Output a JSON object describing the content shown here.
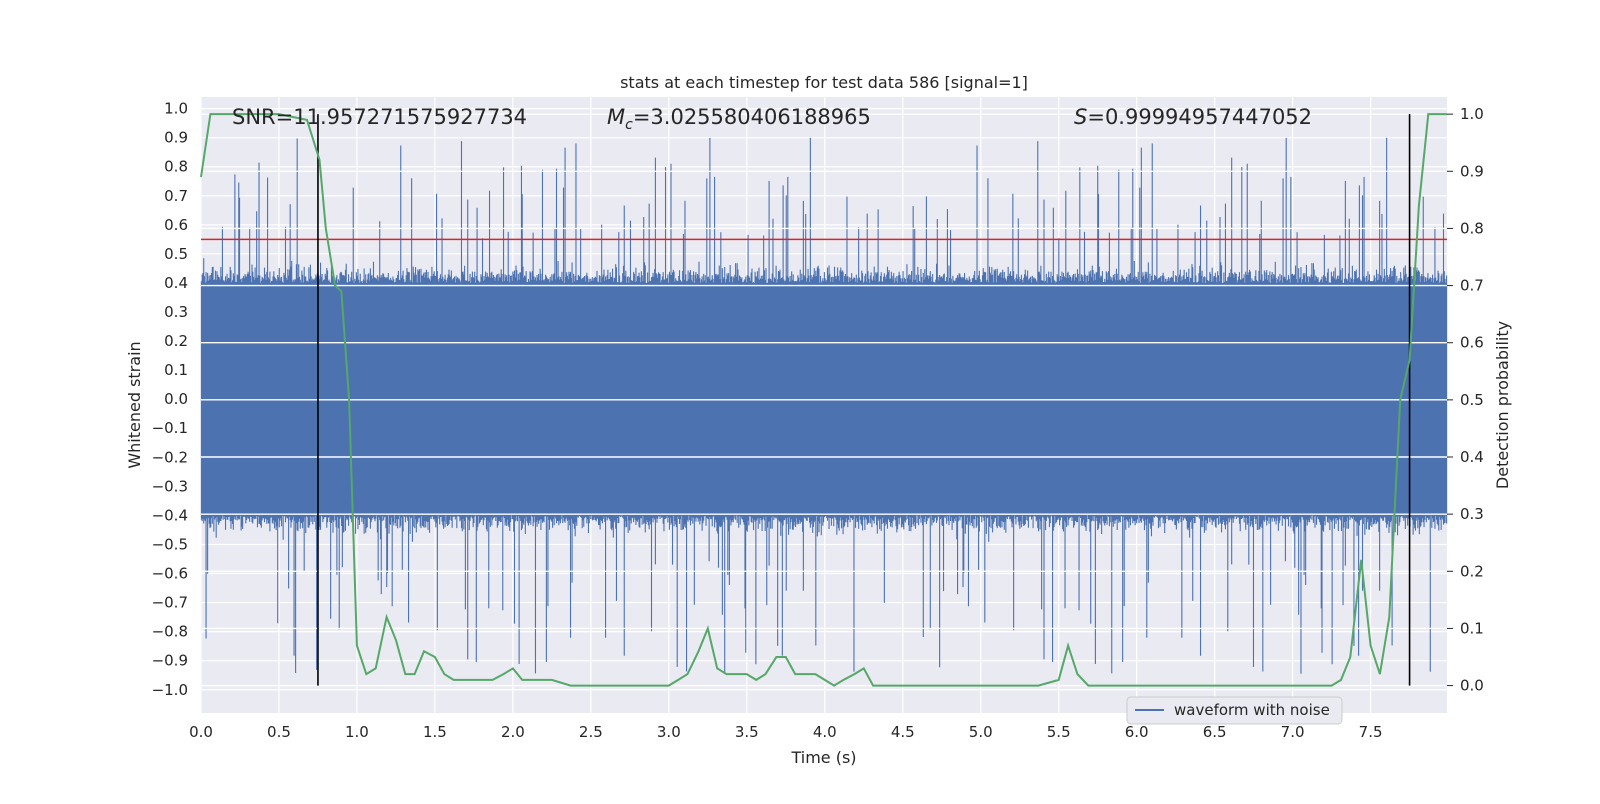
{
  "chart_data": {
    "type": "line",
    "title": "stats at each timestep for test data 586 [signal=1]",
    "xlabel": "Time (s)",
    "ylabel_left": "Whitened strain",
    "ylabel_right": "Detection probability",
    "xlim": [
      0.0,
      7.99
    ],
    "ylim_left": [
      -1.08,
      1.04
    ],
    "ylim_right": [
      -0.048,
      1.03
    ],
    "x_ticks": [
      0.0,
      0.5,
      1.0,
      1.5,
      2.0,
      2.5,
      3.0,
      3.5,
      4.0,
      4.5,
      5.0,
      5.5,
      6.0,
      6.5,
      7.0,
      7.5
    ],
    "y_ticks_left": [
      1.0,
      0.9,
      0.8,
      0.7,
      0.6,
      0.5,
      0.4,
      0.3,
      0.2,
      0.1,
      0.0,
      -0.1,
      -0.2,
      -0.3,
      -0.4,
      -0.5,
      -0.6,
      -0.7,
      -0.8,
      -0.9,
      -1.0
    ],
    "y_ticks_right": [
      1.0,
      0.9,
      0.8,
      0.7,
      0.6,
      0.5,
      0.4,
      0.3,
      0.2,
      0.1,
      0.0
    ],
    "grid": true,
    "legend": {
      "position": "lower-right",
      "entries": [
        "waveform with noise"
      ]
    },
    "annotations": [
      {
        "text": "SNR=11.957271575927734"
      },
      {
        "text_main": "M",
        "text_sub": "c",
        "text_rest": "=3.025580406188965"
      },
      {
        "text_main": "S",
        "text_rest": "=0.99994957447052"
      }
    ],
    "threshold_line": {
      "y": 0.55,
      "color": "#d62728"
    },
    "vertical_markers": [
      0.75,
      7.75
    ],
    "series": [
      {
        "name": "waveform with noise",
        "axis": "left",
        "color": "#4c72b0",
        "style": "dense_noise",
        "envelope_typical": 0.4,
        "envelope_peak": 0.9
      },
      {
        "axis": "right",
        "color": "#55a868",
        "x": [
          0.0,
          0.06,
          0.12,
          0.25,
          0.5,
          0.68,
          0.76,
          0.8,
          0.86,
          0.9,
          0.95,
          1.0,
          1.06,
          1.12,
          1.19,
          1.25,
          1.31,
          1.37,
          1.43,
          1.5,
          1.56,
          1.62,
          1.69,
          1.75,
          1.81,
          1.87,
          1.94,
          2.0,
          2.06,
          2.12,
          2.25,
          2.37,
          2.5,
          2.62,
          2.75,
          2.87,
          3.0,
          3.06,
          3.12,
          3.19,
          3.25,
          3.31,
          3.37,
          3.44,
          3.5,
          3.56,
          3.62,
          3.69,
          3.75,
          3.81,
          3.87,
          3.94,
          4.0,
          4.06,
          4.12,
          4.19,
          4.25,
          4.31,
          4.37,
          4.5,
          4.62,
          4.75,
          4.87,
          5.0,
          5.12,
          5.25,
          5.37,
          5.5,
          5.56,
          5.62,
          5.69,
          5.75,
          5.87,
          6.0,
          6.25,
          6.5,
          6.75,
          7.0,
          7.25,
          7.31,
          7.37,
          7.44,
          7.5,
          7.56,
          7.62,
          7.69,
          7.75,
          7.81,
          7.87,
          7.94,
          7.99
        ],
        "values": [
          0.89,
          1.0,
          1.0,
          1.0,
          1.0,
          0.99,
          0.92,
          0.8,
          0.7,
          0.69,
          0.5,
          0.07,
          0.02,
          0.03,
          0.12,
          0.08,
          0.02,
          0.02,
          0.06,
          0.05,
          0.02,
          0.01,
          0.01,
          0.01,
          0.01,
          0.01,
          0.02,
          0.03,
          0.01,
          0.01,
          0.01,
          0.0,
          0.0,
          0.0,
          0.0,
          0.0,
          0.0,
          0.01,
          0.02,
          0.06,
          0.1,
          0.03,
          0.02,
          0.02,
          0.02,
          0.01,
          0.02,
          0.05,
          0.05,
          0.02,
          0.02,
          0.02,
          0.01,
          0.0,
          0.01,
          0.02,
          0.03,
          0.0,
          0.0,
          0.0,
          0.0,
          0.0,
          0.0,
          0.0,
          0.0,
          0.0,
          0.0,
          0.01,
          0.07,
          0.02,
          0.0,
          0.0,
          0.0,
          0.0,
          0.0,
          0.0,
          0.0,
          0.0,
          0.0,
          0.01,
          0.05,
          0.22,
          0.07,
          0.02,
          0.12,
          0.5,
          0.57,
          0.84,
          1.0,
          1.0,
          1.0
        ]
      }
    ]
  }
}
